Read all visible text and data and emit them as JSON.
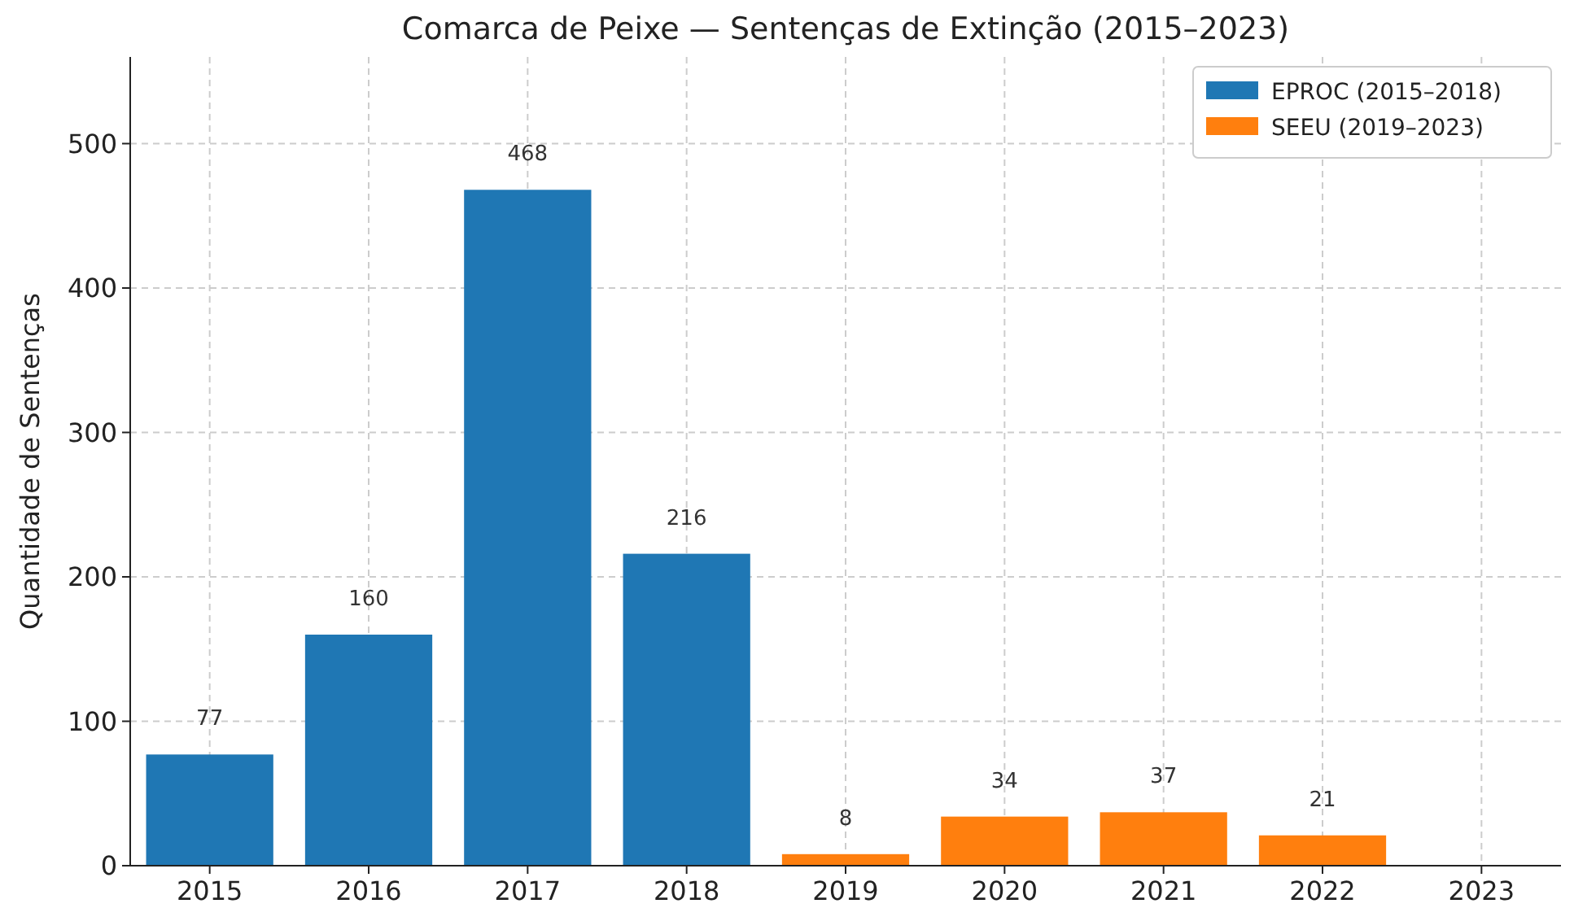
{
  "chart_data": {
    "type": "bar",
    "title": "Comarca de Peixe — Sentenças de Extinção (2015–2023)",
    "ylabel": "Quantidade de Sentenças",
    "categories": [
      "2015",
      "2016",
      "2017",
      "2018",
      "2019",
      "2020",
      "2021",
      "2022",
      "2023"
    ],
    "series": [
      {
        "name": "EPROC (2015–2018)",
        "color": "#1f77b4",
        "values": [
          77,
          160,
          468,
          216,
          null,
          null,
          null,
          null,
          null
        ]
      },
      {
        "name": "SEEU (2019–2023)",
        "color": "#ff7f0e",
        "values": [
          null,
          null,
          null,
          null,
          8,
          34,
          37,
          21,
          null
        ]
      }
    ],
    "ylim": [
      0,
      560
    ],
    "yticks": [
      0,
      100,
      200,
      300,
      400,
      500
    ],
    "grid": true,
    "legend": "top right",
    "data_labels": true
  }
}
